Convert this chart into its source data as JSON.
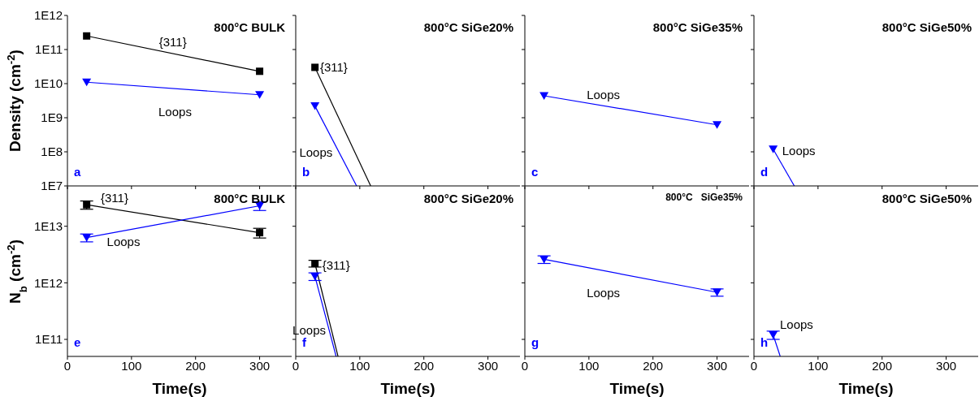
{
  "chart_data": [
    {
      "type": "line",
      "title": "800°C BULK",
      "subtitle": "a",
      "ylabel": "Density (cm$^{-2}$)",
      "log": true,
      "xlim": [
        0,
        350
      ],
      "xticks": [
        0,
        100,
        200,
        300
      ],
      "ylim": [
        10000000.0,
        1000000000000.0
      ],
      "yticks": [
        {
          "value": 10000000.0,
          "label": "1E7"
        },
        {
          "value": 100000000.0,
          "label": "1E8"
        },
        {
          "value": 1000000000.0,
          "label": "1E9"
        },
        {
          "value": 10000000000.0,
          "label": "1E10"
        },
        {
          "value": 100000000000.0,
          "label": "1E11"
        },
        {
          "value": 1000000000000.0,
          "label": "1E12"
        }
      ],
      "tick_labels": "y",
      "grid": false,
      "series": [
        {
          "color": "#000000",
          "marker": "square",
          "x": [
            30,
            300
          ],
          "values": [
            250000000000.0,
            23000000000.0
          ]
        },
        {
          "color": "#0000ff",
          "marker": "triangle",
          "x": [
            30,
            300
          ],
          "values": [
            11000000000.0,
            4700000000.0
          ]
        }
      ],
      "annotations": [
        "{311}",
        "Loops"
      ]
    },
    {
      "type": "line",
      "title": "800°C SiGe20%",
      "subtitle": "b",
      "log": true,
      "xlim": [
        0,
        350
      ],
      "xticks": [
        0,
        100,
        200,
        300
      ],
      "ylim": [
        10000000.0,
        1000000000000.0
      ],
      "yticks": [
        10000000.0,
        100000000.0,
        1000000000.0,
        10000000000.0,
        100000000000.0,
        1000000000000.0
      ],
      "tick_labels": false,
      "grid": false,
      "series": [
        {
          "type": "scatter",
          "color": "#000000",
          "marker": "square",
          "x": [
            30
          ],
          "values": [
            30000000000.0
          ]
        },
        {
          "type": "line",
          "color": "#000000",
          "marker": "none",
          "x": [
            30,
            117
          ],
          "values": [
            30000000000.0,
            10000000.0
          ]
        },
        {
          "type": "scatter",
          "color": "#0000ff",
          "marker": "triangle",
          "x": [
            30
          ],
          "values": [
            2200000000.0
          ]
        },
        {
          "type": "line",
          "color": "#0000ff",
          "marker": "none",
          "x": [
            30,
            95
          ],
          "values": [
            2200000000.0,
            10000000.0
          ]
        }
      ],
      "annotations": [
        "{311}",
        "Loops"
      ]
    },
    {
      "type": "line",
      "title": "800°C SiGe35%",
      "subtitle": "c",
      "log": true,
      "xlim": [
        0,
        350
      ],
      "xticks": [
        0,
        100,
        200,
        300
      ],
      "ylim": [
        10000000.0,
        1000000000000.0
      ],
      "yticks": [
        10000000.0,
        100000000.0,
        1000000000.0,
        10000000000.0,
        100000000000.0,
        1000000000000.0
      ],
      "tick_labels": false,
      "grid": false,
      "series": [
        {
          "color": "#0000ff",
          "marker": "triangle",
          "x": [
            30,
            300
          ],
          "values": [
            4400000000.0,
            620000000.0
          ]
        }
      ],
      "annotations": [
        "Loops"
      ]
    },
    {
      "type": "line",
      "title": "800°C SiGe50%",
      "subtitle": "d",
      "log": true,
      "xlim": [
        0,
        350
      ],
      "xticks": [
        0,
        100,
        200,
        300
      ],
      "ylim": [
        10000000.0,
        1000000000000.0
      ],
      "yticks": [
        10000000.0,
        100000000.0,
        1000000000.0,
        10000000000.0,
        100000000000.0,
        1000000000000.0
      ],
      "tick_labels": false,
      "grid": false,
      "series": [
        {
          "type": "scatter",
          "color": "#0000ff",
          "marker": "triangle",
          "x": [
            30
          ],
          "values": [
            120000000.0
          ]
        },
        {
          "type": "line",
          "color": "#0000ff",
          "marker": "none",
          "x": [
            30,
            63
          ],
          "values": [
            120000000.0,
            10000000.0
          ]
        }
      ],
      "annotations": [
        "Loops"
      ]
    },
    {
      "type": "line",
      "title": "800°C BULK",
      "subtitle": "e",
      "xlabel": "Time(s)",
      "ylabel": "N$_{b}$ (cm$^{-2}$)",
      "log": true,
      "xlim": [
        0,
        350
      ],
      "xticks": [
        0,
        100,
        200,
        300
      ],
      "ylim": [
        50000000000.0,
        50000000000000.0
      ],
      "yticks": [
        {
          "value": 100000000000.0,
          "label": "1E11"
        },
        {
          "value": 1000000000000.0,
          "label": "1E12"
        },
        {
          "value": 10000000000000.0,
          "label": "1E13"
        }
      ],
      "grid": false,
      "series": [
        {
          "color": "#000000",
          "marker": "square",
          "x": [
            30,
            300
          ],
          "values": [
            24000000000000.0,
            7700000000000.0
          ],
          "errors": [
            4000000000000.0,
            1500000000000.0
          ]
        },
        {
          "color": "#0000ff",
          "marker": "triangle",
          "x": [
            30,
            300
          ],
          "values": [
            6300000000000.0,
            23000000000000.0
          ],
          "errors": [
            1000000000000.0,
            4000000000000.0
          ]
        }
      ],
      "annotations": [
        "{311}",
        "Loops"
      ]
    },
    {
      "type": "line",
      "title": "800°C SiGe20%",
      "subtitle": "f",
      "xlabel": "Time(s)",
      "log": true,
      "xlim": [
        0,
        350
      ],
      "xticks": [
        0,
        100,
        200,
        300
      ],
      "ylim": [
        50000000000.0,
        50000000000000.0
      ],
      "yticks": [
        100000000000.0,
        1000000000000.0,
        10000000000000.0
      ],
      "tick_labels": "x",
      "grid": false,
      "series": [
        {
          "type": "scatter",
          "color": "#000000",
          "marker": "square",
          "x": [
            30
          ],
          "values": [
            2200000000000.0
          ],
          "errors": [
            300000000000.0
          ]
        },
        {
          "type": "line",
          "color": "#000000",
          "marker": "none",
          "x": [
            30,
            66
          ],
          "values": [
            2200000000000.0,
            50000000000.0
          ]
        },
        {
          "type": "scatter",
          "color": "#0000ff",
          "marker": "triangle",
          "x": [
            30
          ],
          "values": [
            1300000000000.0
          ],
          "errors": [
            200000000000.0
          ]
        },
        {
          "type": "line",
          "color": "#0000ff",
          "marker": "none",
          "x": [
            30,
            63
          ],
          "values": [
            1300000000000.0,
            50000000000.0
          ]
        }
      ],
      "annotations": [
        "{311}",
        "Loops"
      ]
    },
    {
      "type": "line",
      "title": "800°C   SiGe35%",
      "subtitle": "g",
      "xlabel": "Time(s)",
      "log": true,
      "xlim": [
        0,
        350
      ],
      "xticks": [
        0,
        100,
        200,
        300
      ],
      "ylim": [
        50000000000.0,
        50000000000000.0
      ],
      "yticks": [
        100000000000.0,
        1000000000000.0,
        10000000000000.0
      ],
      "tick_labels": "x",
      "grid": false,
      "series": [
        {
          "color": "#0000ff",
          "marker": "triangle",
          "x": [
            30,
            300
          ],
          "values": [
            2600000000000.0,
            680000000000.0
          ],
          "errors": [
            400000000000.0,
            100000000000.0
          ]
        }
      ],
      "annotations": [
        "Loops"
      ]
    },
    {
      "type": "line",
      "title": "800°C SiGe50%",
      "subtitle": "h",
      "xlabel": "Time(s)",
      "log": true,
      "xlim": [
        0,
        350
      ],
      "xticks": [
        0,
        100,
        200,
        300
      ],
      "ylim": [
        50000000000.0,
        50000000000000.0
      ],
      "yticks": [
        100000000000.0,
        1000000000000.0,
        10000000000000.0
      ],
      "tick_labels": "x",
      "grid": false,
      "series": [
        {
          "type": "scatter",
          "color": "#0000ff",
          "marker": "triangle",
          "x": [
            30
          ],
          "values": [
            120000000000.0
          ],
          "errors": [
            20000000000.0
          ]
        },
        {
          "type": "line",
          "color": "#0000ff",
          "marker": "none",
          "x": [
            30,
            41
          ],
          "values": [
            120000000000.0,
            50000000000.0
          ]
        }
      ],
      "annotations": [
        "Loops"
      ]
    }
  ]
}
